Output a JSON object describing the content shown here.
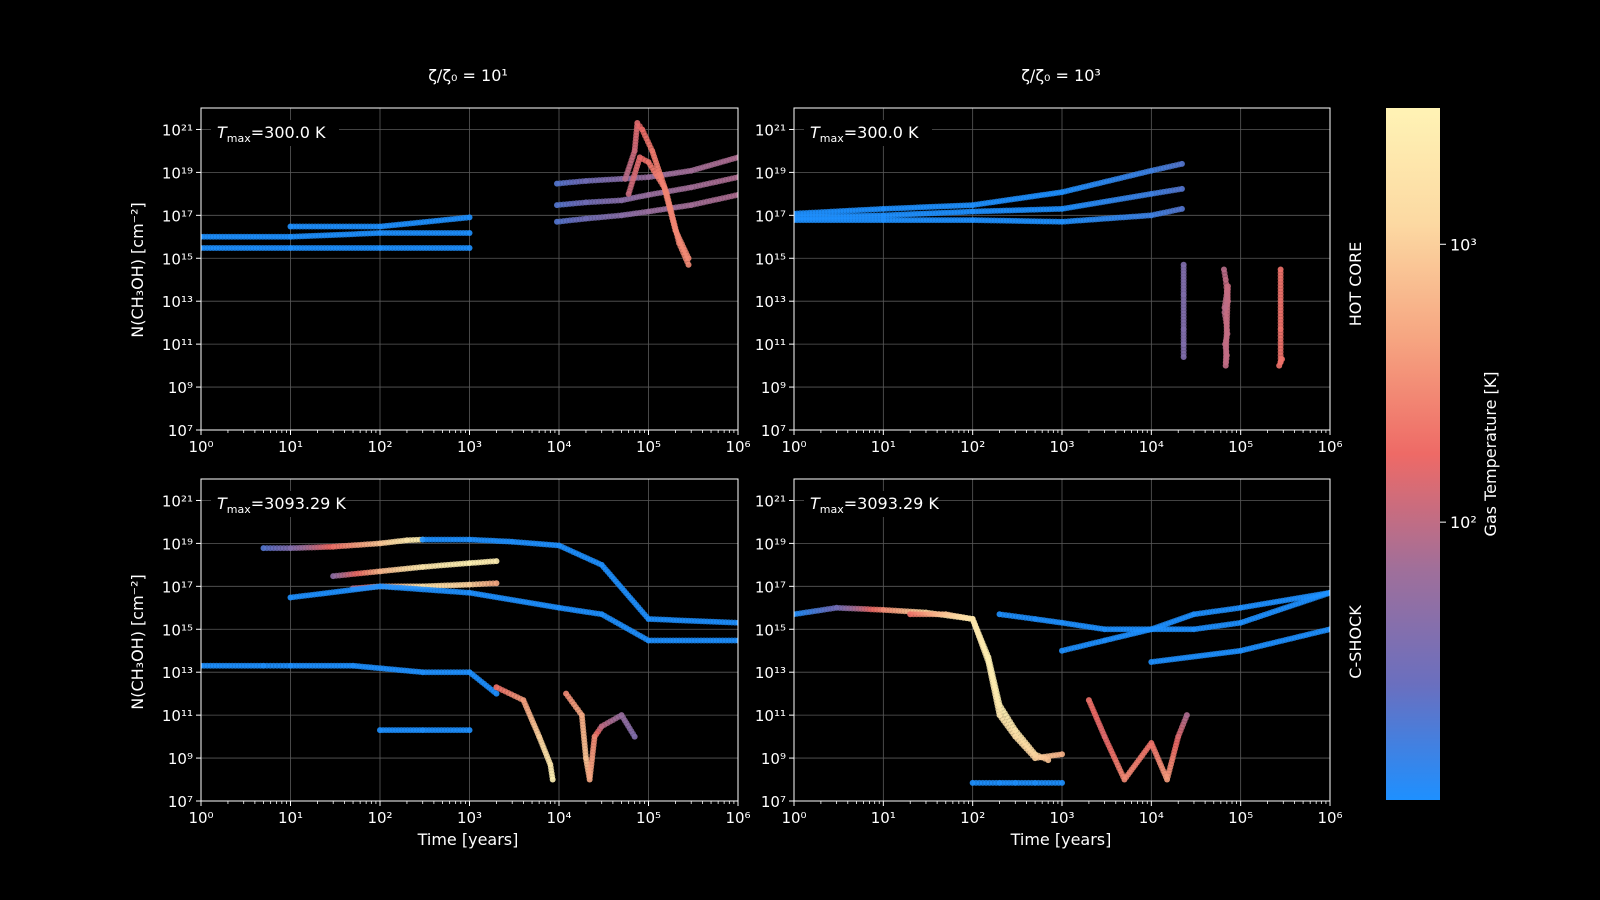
{
  "figure": {
    "background": "#000000",
    "colorbar": {
      "label": "Gas Temperature [K]",
      "scale": "log",
      "range": [
        10,
        3093.29
      ],
      "ticks": [
        {
          "value": 100,
          "label": "10²"
        },
        {
          "value": 1000,
          "label": "10³"
        }
      ],
      "colors": [
        "#1e90ff",
        "#6a6fbf",
        "#a06f9a",
        "#ee6a66",
        "#f6a581",
        "#fcd9a2",
        "#fff3b5"
      ]
    },
    "column_titles": [
      "ζ/ζ₀ = 10¹",
      "ζ/ζ₀ = 10³"
    ],
    "row_labels": [
      "HOT CORE",
      "C-SHOCK"
    ],
    "xlabel": "Time [years]",
    "ylabel": "N(CH₃OH) [cm⁻²]"
  },
  "chart_data": [
    {
      "type": "scatter",
      "panel": "top-left",
      "annotation": "Tmax=300.0 K",
      "xscale": "log",
      "yscale": "log",
      "xlim": [
        1,
        1000000
      ],
      "ylim": [
        10000000,
        1e+22
      ],
      "xticks": [
        "10⁰",
        "10¹",
        "10²",
        "10³",
        "10⁴",
        "10⁵",
        "10⁶"
      ],
      "yticks": [
        "10⁷",
        "10⁹",
        "10¹¹",
        "10¹³",
        "10¹⁵",
        "10¹⁷",
        "10¹⁹",
        "10²¹"
      ],
      "grid": true,
      "series": [
        {
          "x": [
            1,
            10,
            100,
            1000
          ],
          "y": [
            1e+16,
            1e+16,
            1.5e+16,
            1.5e+16
          ],
          "temp": [
            10,
            10,
            10,
            10
          ]
        },
        {
          "x": [
            1,
            10,
            100,
            1000
          ],
          "y": [
            3000000000000000.0,
            3000000000000000.0,
            3000000000000000.0,
            3000000000000000.0
          ],
          "temp": [
            10,
            10,
            10,
            10
          ]
        },
        {
          "x": [
            10,
            100,
            1000
          ],
          "y": [
            3e+16,
            3e+16,
            8e+16
          ],
          "temp": [
            10,
            10,
            10
          ]
        },
        {
          "x": [
            9500,
            20000,
            50000,
            100000,
            300000,
            1000000
          ],
          "y": [
            3e+18,
            4e+18,
            5e+18,
            6e+18,
            1.2e+19,
            5e+19
          ],
          "temp": [
            20,
            30,
            45,
            60,
            70,
            80
          ]
        },
        {
          "x": [
            9500,
            20000,
            50000,
            100000,
            300000,
            1000000
          ],
          "y": [
            3e+17,
            4e+17,
            5e+17,
            9e+17,
            2e+18,
            6e+18
          ],
          "temp": [
            20,
            30,
            45,
            60,
            70,
            80
          ]
        },
        {
          "x": [
            9500,
            20000,
            50000,
            100000,
            300000,
            1000000
          ],
          "y": [
            5e+16,
            7e+16,
            1e+17,
            1.5e+17,
            3e+17,
            9e+17
          ],
          "temp": [
            20,
            30,
            45,
            60,
            70,
            80
          ]
        },
        {
          "x": [
            55000,
            70000,
            75000,
            85000,
            110000,
            160000,
            220000,
            280000
          ],
          "y": [
            5e+18,
            1e+20,
            2e+21,
            1e+21,
            1e+20,
            1e+18,
            5000000000000000.0,
            500000000000000.0
          ],
          "temp": [
            90,
            120,
            150,
            180,
            230,
            260,
            280,
            300
          ]
        },
        {
          "x": [
            60000,
            80000,
            100000,
            150000,
            200000,
            280000
          ],
          "y": [
            1e+18,
            5e+19,
            3e+19,
            2e+18,
            2e+16,
            1000000000000000.0
          ],
          "temp": [
            110,
            160,
            210,
            260,
            280,
            300
          ]
        }
      ]
    },
    {
      "type": "scatter",
      "panel": "top-right",
      "annotation": "Tmax=300.0 K",
      "xscale": "log",
      "yscale": "log",
      "xlim": [
        1,
        1000000
      ],
      "ylim": [
        10000000,
        1e+22
      ],
      "xticks": [
        "10⁰",
        "10¹",
        "10²",
        "10³",
        "10⁴",
        "10⁵",
        "10⁶"
      ],
      "yticks": [
        "10⁷",
        "10⁹",
        "10¹¹",
        "10¹³",
        "10¹⁵",
        "10¹⁷",
        "10¹⁹",
        "10²¹"
      ],
      "grid": true,
      "series": [
        {
          "x": [
            1,
            10,
            100,
            1000,
            10000,
            22000
          ],
          "y": [
            1.2e+17,
            2e+17,
            3e+17,
            1.2e+18,
            1.2e+19,
            2.5e+19
          ],
          "temp": [
            10,
            10,
            10,
            10,
            15,
            20
          ]
        },
        {
          "x": [
            1,
            10,
            100,
            1000,
            10000,
            22000
          ],
          "y": [
            8e+16,
            1e+17,
            1.5e+17,
            2e+17,
            1e+18,
            1.7e+18
          ],
          "temp": [
            10,
            10,
            10,
            10,
            15,
            20
          ]
        },
        {
          "x": [
            1,
            10,
            100,
            1000,
            10000,
            22000
          ],
          "y": [
            6e+16,
            6e+16,
            6e+16,
            5e+16,
            1e+17,
            2e+17
          ],
          "temp": [
            10,
            10,
            10,
            10,
            15,
            20
          ]
        },
        {
          "x": [
            23000,
            23000,
            23000,
            23000,
            23000
          ],
          "y": [
            500000000000000.0,
            20000000000000.0,
            500000000000.0,
            100000000000.0,
            25000000000.0
          ],
          "temp": [
            40,
            40,
            40,
            40,
            40
          ]
        },
        {
          "x": [
            65000,
            68000,
            70000,
            72000,
            66000,
            69000,
            71000,
            67000,
            70000,
            68000,
            72000,
            66000
          ],
          "y": [
            300000000000000.0,
            100000000000000.0,
            30000000000000.0,
            10000000000000.0,
            3000000000000.0,
            1000000000000.0,
            300000000000.0,
            100000000000.0,
            30000000000.0,
            10000000000.0,
            50000000000000.0,
            5000000000000.0
          ],
          "temp": [
            90,
            100,
            110,
            100,
            90,
            110,
            100,
            95,
            105,
            100,
            110,
            95
          ]
        },
        {
          "x": [
            280000,
            280000,
            280000,
            270000,
            290000
          ],
          "y": [
            300000000000000.0,
            500000000000.0,
            15000000000.0,
            10000000000.0,
            20000000000.0
          ],
          "temp": [
            200,
            200,
            200,
            200,
            200
          ]
        }
      ]
    },
    {
      "type": "scatter",
      "panel": "bottom-left",
      "annotation": "Tmax=3093.29 K",
      "xlabel": "Time [years]",
      "xscale": "log",
      "yscale": "log",
      "xlim": [
        1,
        1000000
      ],
      "ylim": [
        10000000,
        1e+22
      ],
      "xticks": [
        "10⁰",
        "10¹",
        "10²",
        "10³",
        "10⁴",
        "10⁵",
        "10⁶"
      ],
      "yticks": [
        "10⁷",
        "10⁹",
        "10¹¹",
        "10¹³",
        "10¹⁵",
        "10¹⁷",
        "10¹⁹",
        "10²¹"
      ],
      "grid": true,
      "series": [
        {
          "x": [
            5,
            10,
            30,
            100,
            200,
            300
          ],
          "y": [
            6e+18,
            6e+18,
            7e+18,
            1e+19,
            1.4e+19,
            1.5e+19
          ],
          "temp": [
            20,
            40,
            200,
            800,
            2000,
            3000
          ]
        },
        {
          "x": [
            300,
            1000,
            3000,
            10000,
            30000,
            100000,
            1000000
          ],
          "y": [
            1.5e+19,
            1.5e+19,
            1.2e+19,
            8e+18,
            1e+18,
            3000000000000000.0,
            2000000000000000.0
          ],
          "temp": [
            10,
            10,
            10,
            10,
            10,
            10,
            10
          ]
        },
        {
          "x": [
            30,
            100,
            300,
            1000,
            2000
          ],
          "y": [
            3e+17,
            5e+17,
            8e+17,
            1.2e+18,
            1.5e+18
          ],
          "temp": [
            50,
            600,
            2000,
            3000,
            2500
          ]
        },
        {
          "x": [
            50,
            100,
            300,
            1000,
            2000
          ],
          "y": [
            8e+16,
            1e+17,
            1e+17,
            1.2e+17,
            1.4e+17
          ],
          "temp": [
            80,
            400,
            1500,
            1000,
            500
          ]
        },
        {
          "x": [
            10,
            100,
            1000,
            10000,
            30000,
            100000,
            1000000
          ],
          "y": [
            3e+16,
            1e+17,
            5e+16,
            1e+16,
            5000000000000000.0,
            300000000000000.0,
            300000000000000.0
          ],
          "temp": [
            10,
            10,
            10,
            10,
            10,
            10,
            10
          ]
        },
        {
          "x": [
            1,
            5,
            10,
            50,
            300,
            1000,
            2000
          ],
          "y": [
            20000000000000.0,
            20000000000000.0,
            20000000000000.0,
            20000000000000.0,
            10000000000000.0,
            10000000000000.0,
            1000000000000.0
          ],
          "temp": [
            10,
            10,
            10,
            10,
            10,
            10,
            10
          ]
        },
        {
          "x": [
            2000,
            4000,
            6000,
            8000,
            8500
          ],
          "y": [
            2000000000000.0,
            500000000000.0,
            10000000000.0,
            500000000.0,
            100000000.0
          ],
          "temp": [
            200,
            400,
            1000,
            2000,
            3000
          ]
        },
        {
          "x": [
            12000,
            18000,
            20000,
            22000,
            25000,
            30000,
            50000,
            70000
          ],
          "y": [
            1000000000000.0,
            100000000000.0,
            1000000000.0,
            100000000.0,
            10000000000.0,
            30000000000.0,
            100000000000.0,
            10000000000.0
          ],
          "temp": [
            300,
            500,
            800,
            500,
            300,
            100,
            60,
            40
          ]
        },
        {
          "x": [
            100,
            300,
            1000
          ],
          "y": [
            20000000000.0,
            20000000000.0,
            20000000000.0
          ],
          "temp": [
            10,
            10,
            10
          ]
        }
      ]
    },
    {
      "type": "scatter",
      "panel": "bottom-right",
      "annotation": "Tmax=3093.29 K",
      "xlabel": "Time [years]",
      "xscale": "log",
      "yscale": "log",
      "xlim": [
        1,
        1000000
      ],
      "ylim": [
        10000000,
        1e+22
      ],
      "xticks": [
        "10⁰",
        "10¹",
        "10²",
        "10³",
        "10⁴",
        "10⁵",
        "10⁶"
      ],
      "yticks": [
        "10⁷",
        "10⁹",
        "10¹¹",
        "10¹³",
        "10¹⁵",
        "10¹⁷",
        "10¹⁹",
        "10²¹"
      ],
      "grid": true,
      "series": [
        {
          "x": [
            1,
            3,
            10,
            30,
            100,
            150,
            200,
            300,
            500,
            700
          ],
          "y": [
            5000000000000000.0,
            1e+16,
            8000000000000000.0,
            6000000000000000.0,
            3000000000000000.0,
            50000000000000.0,
            300000000000.0,
            20000000000.0,
            1500000000.0,
            800000000.0
          ],
          "temp": [
            10,
            30,
            300,
            1200,
            2500,
            3000,
            2800,
            2000,
            1200,
            800
          ]
        },
        {
          "x": [
            20,
            50,
            100,
            150,
            200,
            300,
            500,
            1000
          ],
          "y": [
            5000000000000000.0,
            5000000000000000.0,
            3000000000000000.0,
            30000000000000.0,
            100000000000.0,
            10000000000.0,
            1000000000.0,
            1500000000.0
          ],
          "temp": [
            200,
            800,
            1800,
            2500,
            2000,
            1500,
            1000,
            600
          ]
        },
        {
          "x": [
            200,
            500,
            1000,
            3000,
            10000,
            30000,
            100000,
            1000000
          ],
          "y": [
            5000000000000000.0,
            3000000000000000.0,
            2000000000000000.0,
            1000000000000000.0,
            1000000000000000.0,
            1000000000000000.0,
            2000000000000000.0,
            5e+16
          ],
          "temp": [
            10,
            10,
            10,
            10,
            10,
            10,
            10,
            10
          ]
        },
        {
          "x": [
            1000,
            3000,
            10000,
            30000,
            100000,
            1000000
          ],
          "y": [
            100000000000000.0,
            300000000000000.0,
            1000000000000000.0,
            5000000000000000.0,
            1e+16,
            5e+16
          ],
          "temp": [
            10,
            10,
            10,
            10,
            10,
            10
          ]
        },
        {
          "x": [
            10000,
            100000,
            1000000
          ],
          "y": [
            30000000000000.0,
            100000000000000.0,
            1000000000000000.0
          ],
          "temp": [
            10,
            10,
            10
          ]
        },
        {
          "x": [
            2000,
            3000,
            5000,
            10000,
            15000,
            20000,
            25000
          ],
          "y": [
            500000000000.0,
            10000000000.0,
            100000000.0,
            5000000000.0,
            100000000.0,
            10000000000.0,
            100000000000.0
          ],
          "temp": [
            200,
            150,
            300,
            200,
            400,
            150,
            80
          ]
        },
        {
          "x": [
            100,
            200,
            300,
            500,
            1000
          ],
          "y": [
            70000000.0,
            70000000.0,
            70000000.0,
            70000000.0,
            70000000.0
          ],
          "temp": [
            10,
            10,
            10,
            10,
            10
          ]
        }
      ]
    }
  ]
}
